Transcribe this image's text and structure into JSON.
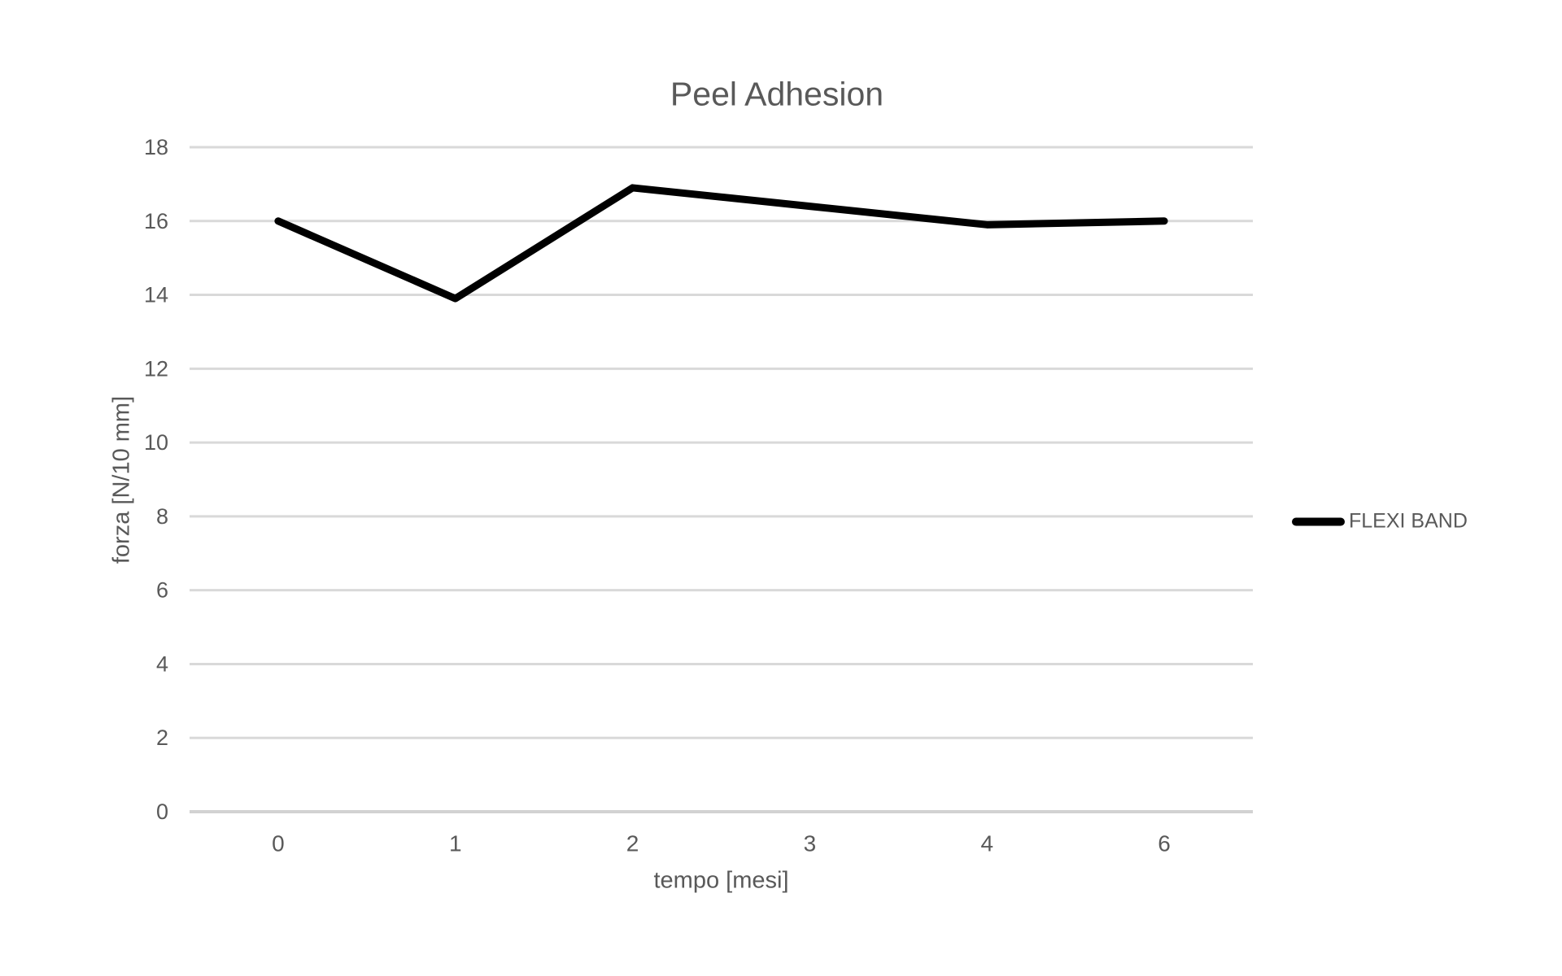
{
  "chart_data": {
    "type": "line",
    "title": "Peel Adhesion",
    "xlabel": "tempo [mesi]",
    "ylabel": "forza [N/10 mm]",
    "categories": [
      "0",
      "1",
      "2",
      "3",
      "4",
      "6"
    ],
    "series": [
      {
        "name": "FLEXI BAND",
        "values": [
          16,
          13.9,
          16.9,
          16.4,
          15.9,
          16
        ],
        "color": "#000000"
      }
    ],
    "ylim": [
      0,
      18
    ],
    "yticks": [
      0,
      2,
      4,
      6,
      8,
      10,
      12,
      14,
      16,
      18
    ],
    "grid": true,
    "legend_position": "right",
    "colors": {
      "text": "#595959",
      "gridline": "#d9d9d9",
      "axis_line": "#d2d2d2",
      "background": "#ffffff"
    }
  }
}
